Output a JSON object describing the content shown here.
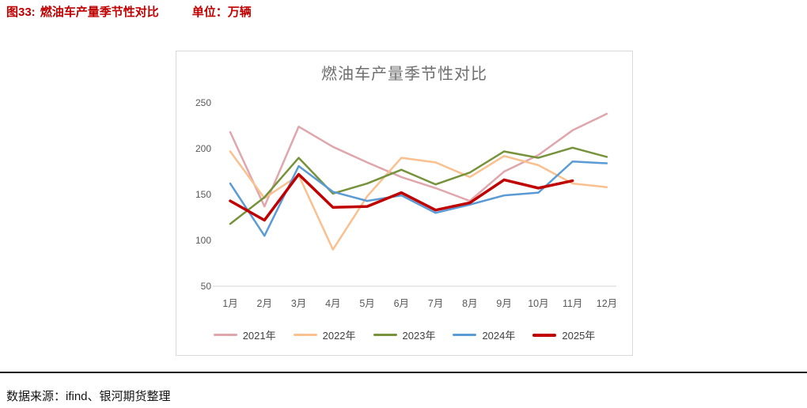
{
  "header": {
    "figure_label": "图33:",
    "title": "燃油车产量季节性对比",
    "unit": "单位：万辆"
  },
  "footer": {
    "source": "数据来源：ifind、银河期货整理"
  },
  "chart_data": {
    "type": "line",
    "title": "燃油车产量季节性对比",
    "categories": [
      "1月",
      "2月",
      "3月",
      "4月",
      "5月",
      "6月",
      "7月",
      "8月",
      "9月",
      "10月",
      "11月",
      "12月"
    ],
    "series": [
      {
        "name": "2021年",
        "color": "#DFA6AB",
        "line_width": 2.5,
        "values": [
          218,
          137,
          224,
          202,
          185,
          169,
          157,
          143,
          175,
          193,
          220,
          238
        ]
      },
      {
        "name": "2022年",
        "color": "#FAC08F",
        "line_width": 2.5,
        "values": [
          197,
          146,
          171,
          90,
          148,
          190,
          185,
          169,
          192,
          182,
          162,
          158
        ]
      },
      {
        "name": "2023年",
        "color": "#76933C",
        "line_width": 2.5,
        "values": [
          118,
          147,
          190,
          151,
          162,
          177,
          161,
          174,
          197,
          190,
          201,
          191
        ]
      },
      {
        "name": "2024年",
        "color": "#5B9BD5",
        "line_width": 2.5,
        "values": [
          162,
          105,
          181,
          153,
          143,
          149,
          130,
          139,
          149,
          152,
          186,
          184
        ]
      },
      {
        "name": "2025年",
        "color": "#C00000",
        "line_width": 3.5,
        "values": [
          143,
          122,
          172,
          136,
          137,
          152,
          133,
          141,
          166,
          157,
          165
        ]
      }
    ],
    "y_ticks": [
      250,
      200,
      150,
      100,
      50
    ],
    "ylim": [
      50,
      250
    ],
    "xlabel": "",
    "ylabel": "",
    "grid": false,
    "legend_position": "bottom",
    "tick_color": "#595959",
    "axis_line_color": "#d6d6d6"
  }
}
